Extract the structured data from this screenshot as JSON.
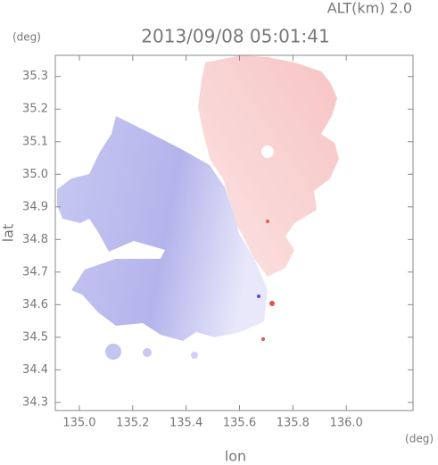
{
  "chart_data": {
    "type": "map",
    "title": "2013/09/08 05:01:41",
    "annotation": "ALT(km) 2.0",
    "y_unit": "(deg)",
    "x_unit": "(deg)",
    "xlabel": "lon",
    "ylabel": "lat",
    "xlim": [
      134.91,
      136.25
    ],
    "ylim": [
      34.275,
      35.365
    ],
    "xticks": [
      {
        "value": 135.0,
        "label": "135.0"
      },
      135.2,
      135.4,
      135.6,
      135.8,
      {
        "value": 136.0,
        "label": "136.0"
      }
    ],
    "yticks": [
      34.3,
      34.4,
      34.5,
      34.6,
      34.7,
      34.8,
      34.9,
      {
        "value": 35.0,
        "label": "35.0"
      },
      35.1,
      35.2,
      35.3
    ]
  }
}
